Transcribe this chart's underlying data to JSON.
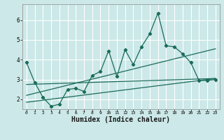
{
  "background_color": "#cce8e8",
  "grid_color": "#ffffff",
  "line_color": "#1a6b5a",
  "xlabel": "Humidex (Indice chaleur)",
  "xlabel_fontsize": 7,
  "yticks": [
    2,
    3,
    4,
    5,
    6
  ],
  "xticks": [
    0,
    1,
    2,
    3,
    4,
    5,
    6,
    7,
    8,
    9,
    10,
    11,
    12,
    13,
    14,
    15,
    16,
    17,
    18,
    19,
    20,
    21,
    22,
    23
  ],
  "xlim": [
    -0.5,
    23.5
  ],
  "ylim": [
    1.5,
    6.8
  ],
  "series1_x": [
    0,
    1,
    2,
    3,
    4,
    5,
    6,
    7,
    8,
    9,
    10,
    11,
    12,
    13,
    14,
    15,
    16,
    17,
    18,
    19,
    20,
    21,
    22,
    23
  ],
  "series1_y": [
    3.85,
    2.85,
    2.1,
    1.65,
    1.75,
    2.5,
    2.55,
    2.4,
    3.2,
    3.4,
    4.45,
    3.15,
    4.5,
    3.75,
    4.65,
    5.3,
    6.35,
    4.7,
    4.65,
    4.3,
    3.85,
    2.95,
    2.95,
    3.0
  ],
  "trend1_x": [
    0,
    23
  ],
  "trend1_y": [
    2.2,
    4.55
  ],
  "trend2_x": [
    0,
    23
  ],
  "trend2_y": [
    2.75,
    3.05
  ],
  "trend3_x": [
    0,
    23
  ],
  "trend3_y": [
    1.85,
    3.05
  ]
}
